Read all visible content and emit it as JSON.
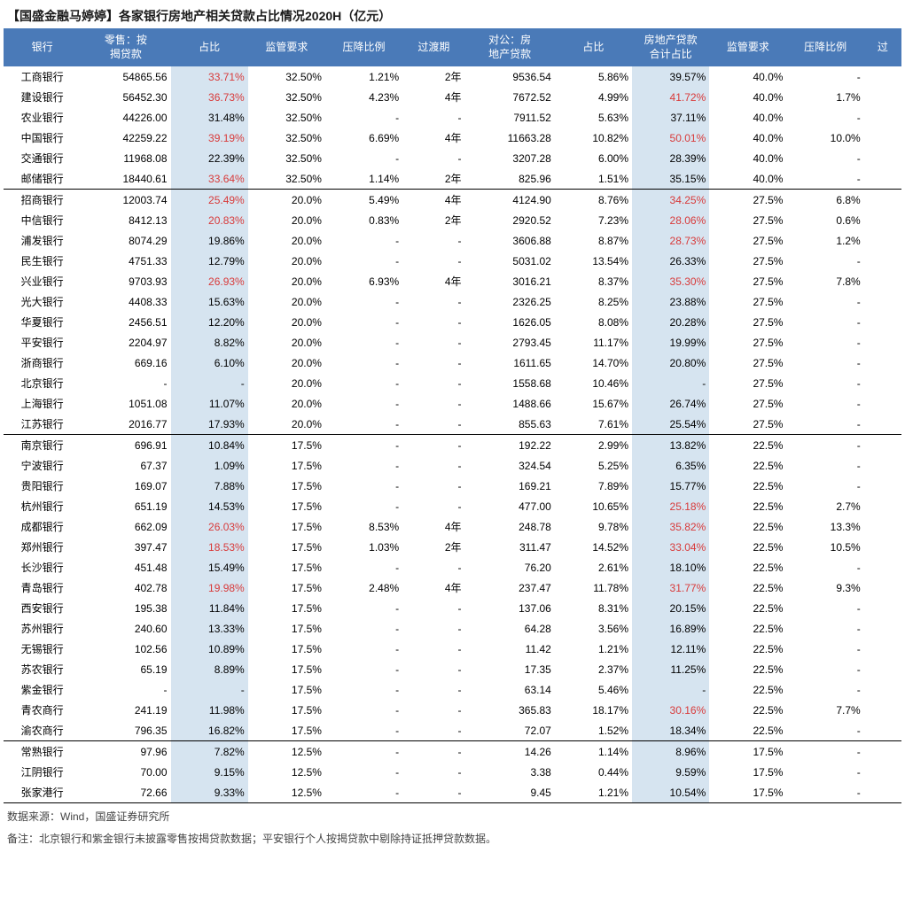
{
  "title": "【国盛金融马婷婷】各家银行房地产相关贷款占比情况2020H（亿元）",
  "footer_source": "数据来源：Wind，国盛证券研究所",
  "footer_note": "备注：北京银行和紫金银行未披露零售按揭贷款数据；平安银行个人按揭贷款中剔除持证抵押贷款数据。",
  "table": {
    "header_bg": "#4a7ab8",
    "header_fg": "#ffffff",
    "highlight_bg": "#d6e4f0",
    "red": "#d83a3a",
    "columns": [
      "银行",
      "零售：按揭贷款",
      "占比",
      "监管要求",
      "压降比例",
      "过渡期",
      "对公：房地产贷款",
      "占比",
      "房地产贷款合计占比",
      "监管要求",
      "压降比例",
      "过"
    ],
    "highlight_cols": [
      2,
      8
    ],
    "groups": [
      {
        "rows": [
          {
            "c": [
              "工商银行",
              "54865.56",
              "33.71%",
              "32.50%",
              "1.21%",
              "2年",
              "9536.54",
              "5.86%",
              "39.57%",
              "40.0%",
              "-",
              ""
            ],
            "red": [
              2
            ]
          },
          {
            "c": [
              "建设银行",
              "56452.30",
              "36.73%",
              "32.50%",
              "4.23%",
              "4年",
              "7672.52",
              "4.99%",
              "41.72%",
              "40.0%",
              "1.7%",
              ""
            ],
            "red": [
              2,
              8
            ]
          },
          {
            "c": [
              "农业银行",
              "44226.00",
              "31.48%",
              "32.50%",
              "-",
              "-",
              "7911.52",
              "5.63%",
              "37.11%",
              "40.0%",
              "-",
              ""
            ],
            "red": []
          },
          {
            "c": [
              "中国银行",
              "42259.22",
              "39.19%",
              "32.50%",
              "6.69%",
              "4年",
              "11663.28",
              "10.82%",
              "50.01%",
              "40.0%",
              "10.0%",
              ""
            ],
            "red": [
              2,
              8
            ]
          },
          {
            "c": [
              "交通银行",
              "11968.08",
              "22.39%",
              "32.50%",
              "-",
              "-",
              "3207.28",
              "6.00%",
              "28.39%",
              "40.0%",
              "-",
              ""
            ],
            "red": []
          },
          {
            "c": [
              "邮储银行",
              "18440.61",
              "33.64%",
              "32.50%",
              "1.14%",
              "2年",
              "825.96",
              "1.51%",
              "35.15%",
              "40.0%",
              "-",
              ""
            ],
            "red": [
              2
            ]
          }
        ]
      },
      {
        "rows": [
          {
            "c": [
              "招商银行",
              "12003.74",
              "25.49%",
              "20.0%",
              "5.49%",
              "4年",
              "4124.90",
              "8.76%",
              "34.25%",
              "27.5%",
              "6.8%",
              ""
            ],
            "red": [
              2,
              8
            ]
          },
          {
            "c": [
              "中信银行",
              "8412.13",
              "20.83%",
              "20.0%",
              "0.83%",
              "2年",
              "2920.52",
              "7.23%",
              "28.06%",
              "27.5%",
              "0.6%",
              ""
            ],
            "red": [
              2,
              8
            ]
          },
          {
            "c": [
              "浦发银行",
              "8074.29",
              "19.86%",
              "20.0%",
              "-",
              "-",
              "3606.88",
              "8.87%",
              "28.73%",
              "27.5%",
              "1.2%",
              ""
            ],
            "red": [
              8
            ]
          },
          {
            "c": [
              "民生银行",
              "4751.33",
              "12.79%",
              "20.0%",
              "-",
              "-",
              "5031.02",
              "13.54%",
              "26.33%",
              "27.5%",
              "-",
              ""
            ],
            "red": []
          },
          {
            "c": [
              "兴业银行",
              "9703.93",
              "26.93%",
              "20.0%",
              "6.93%",
              "4年",
              "3016.21",
              "8.37%",
              "35.30%",
              "27.5%",
              "7.8%",
              ""
            ],
            "red": [
              2,
              8
            ]
          },
          {
            "c": [
              "光大银行",
              "4408.33",
              "15.63%",
              "20.0%",
              "-",
              "-",
              "2326.25",
              "8.25%",
              "23.88%",
              "27.5%",
              "-",
              ""
            ],
            "red": []
          },
          {
            "c": [
              "华夏银行",
              "2456.51",
              "12.20%",
              "20.0%",
              "-",
              "-",
              "1626.05",
              "8.08%",
              "20.28%",
              "27.5%",
              "-",
              ""
            ],
            "red": []
          },
          {
            "c": [
              "平安银行",
              "2204.97",
              "8.82%",
              "20.0%",
              "-",
              "-",
              "2793.45",
              "11.17%",
              "19.99%",
              "27.5%",
              "-",
              ""
            ],
            "red": []
          },
          {
            "c": [
              "浙商银行",
              "669.16",
              "6.10%",
              "20.0%",
              "-",
              "-",
              "1611.65",
              "14.70%",
              "20.80%",
              "27.5%",
              "-",
              ""
            ],
            "red": []
          },
          {
            "c": [
              "北京银行",
              "-",
              "-",
              "20.0%",
              "-",
              "-",
              "1558.68",
              "10.46%",
              "-",
              "27.5%",
              "-",
              ""
            ],
            "red": []
          },
          {
            "c": [
              "上海银行",
              "1051.08",
              "11.07%",
              "20.0%",
              "-",
              "-",
              "1488.66",
              "15.67%",
              "26.74%",
              "27.5%",
              "-",
              ""
            ],
            "red": []
          },
          {
            "c": [
              "江苏银行",
              "2016.77",
              "17.93%",
              "20.0%",
              "-",
              "-",
              "855.63",
              "7.61%",
              "25.54%",
              "27.5%",
              "-",
              ""
            ],
            "red": []
          }
        ]
      },
      {
        "rows": [
          {
            "c": [
              "南京银行",
              "696.91",
              "10.84%",
              "17.5%",
              "-",
              "-",
              "192.22",
              "2.99%",
              "13.82%",
              "22.5%",
              "-",
              ""
            ],
            "red": []
          },
          {
            "c": [
              "宁波银行",
              "67.37",
              "1.09%",
              "17.5%",
              "-",
              "-",
              "324.54",
              "5.25%",
              "6.35%",
              "22.5%",
              "-",
              ""
            ],
            "red": []
          },
          {
            "c": [
              "贵阳银行",
              "169.07",
              "7.88%",
              "17.5%",
              "-",
              "-",
              "169.21",
              "7.89%",
              "15.77%",
              "22.5%",
              "-",
              ""
            ],
            "red": []
          },
          {
            "c": [
              "杭州银行",
              "651.19",
              "14.53%",
              "17.5%",
              "-",
              "-",
              "477.00",
              "10.65%",
              "25.18%",
              "22.5%",
              "2.7%",
              ""
            ],
            "red": [
              8
            ]
          },
          {
            "c": [
              "成都银行",
              "662.09",
              "26.03%",
              "17.5%",
              "8.53%",
              "4年",
              "248.78",
              "9.78%",
              "35.82%",
              "22.5%",
              "13.3%",
              ""
            ],
            "red": [
              2,
              8
            ]
          },
          {
            "c": [
              "郑州银行",
              "397.47",
              "18.53%",
              "17.5%",
              "1.03%",
              "2年",
              "311.47",
              "14.52%",
              "33.04%",
              "22.5%",
              "10.5%",
              ""
            ],
            "red": [
              2,
              8
            ]
          },
          {
            "c": [
              "长沙银行",
              "451.48",
              "15.49%",
              "17.5%",
              "-",
              "-",
              "76.20",
              "2.61%",
              "18.10%",
              "22.5%",
              "-",
              ""
            ],
            "red": []
          },
          {
            "c": [
              "青岛银行",
              "402.78",
              "19.98%",
              "17.5%",
              "2.48%",
              "4年",
              "237.47",
              "11.78%",
              "31.77%",
              "22.5%",
              "9.3%",
              ""
            ],
            "red": [
              2,
              8
            ]
          },
          {
            "c": [
              "西安银行",
              "195.38",
              "11.84%",
              "17.5%",
              "-",
              "-",
              "137.06",
              "8.31%",
              "20.15%",
              "22.5%",
              "-",
              ""
            ],
            "red": []
          },
          {
            "c": [
              "苏州银行",
              "240.60",
              "13.33%",
              "17.5%",
              "-",
              "-",
              "64.28",
              "3.56%",
              "16.89%",
              "22.5%",
              "-",
              ""
            ],
            "red": []
          },
          {
            "c": [
              "无锡银行",
              "102.56",
              "10.89%",
              "17.5%",
              "-",
              "-",
              "11.42",
              "1.21%",
              "12.11%",
              "22.5%",
              "-",
              ""
            ],
            "red": []
          },
          {
            "c": [
              "苏农银行",
              "65.19",
              "8.89%",
              "17.5%",
              "-",
              "-",
              "17.35",
              "2.37%",
              "11.25%",
              "22.5%",
              "-",
              ""
            ],
            "red": []
          },
          {
            "c": [
              "紫金银行",
              "-",
              "-",
              "17.5%",
              "-",
              "-",
              "63.14",
              "5.46%",
              "-",
              "22.5%",
              "-",
              ""
            ],
            "red": []
          },
          {
            "c": [
              "青农商行",
              "241.19",
              "11.98%",
              "17.5%",
              "-",
              "-",
              "365.83",
              "18.17%",
              "30.16%",
              "22.5%",
              "7.7%",
              ""
            ],
            "red": [
              8
            ]
          },
          {
            "c": [
              "渝农商行",
              "796.35",
              "16.82%",
              "17.5%",
              "-",
              "-",
              "72.07",
              "1.52%",
              "18.34%",
              "22.5%",
              "-",
              ""
            ],
            "red": []
          }
        ]
      },
      {
        "rows": [
          {
            "c": [
              "常熟银行",
              "97.96",
              "7.82%",
              "12.5%",
              "-",
              "-",
              "14.26",
              "1.14%",
              "8.96%",
              "17.5%",
              "-",
              ""
            ],
            "red": []
          },
          {
            "c": [
              "江阴银行",
              "70.00",
              "9.15%",
              "12.5%",
              "-",
              "-",
              "3.38",
              "0.44%",
              "9.59%",
              "17.5%",
              "-",
              ""
            ],
            "red": []
          },
          {
            "c": [
              "张家港行",
              "72.66",
              "9.33%",
              "12.5%",
              "-",
              "-",
              "9.45",
              "1.21%",
              "10.54%",
              "17.5%",
              "-",
              ""
            ],
            "red": []
          }
        ]
      }
    ]
  }
}
